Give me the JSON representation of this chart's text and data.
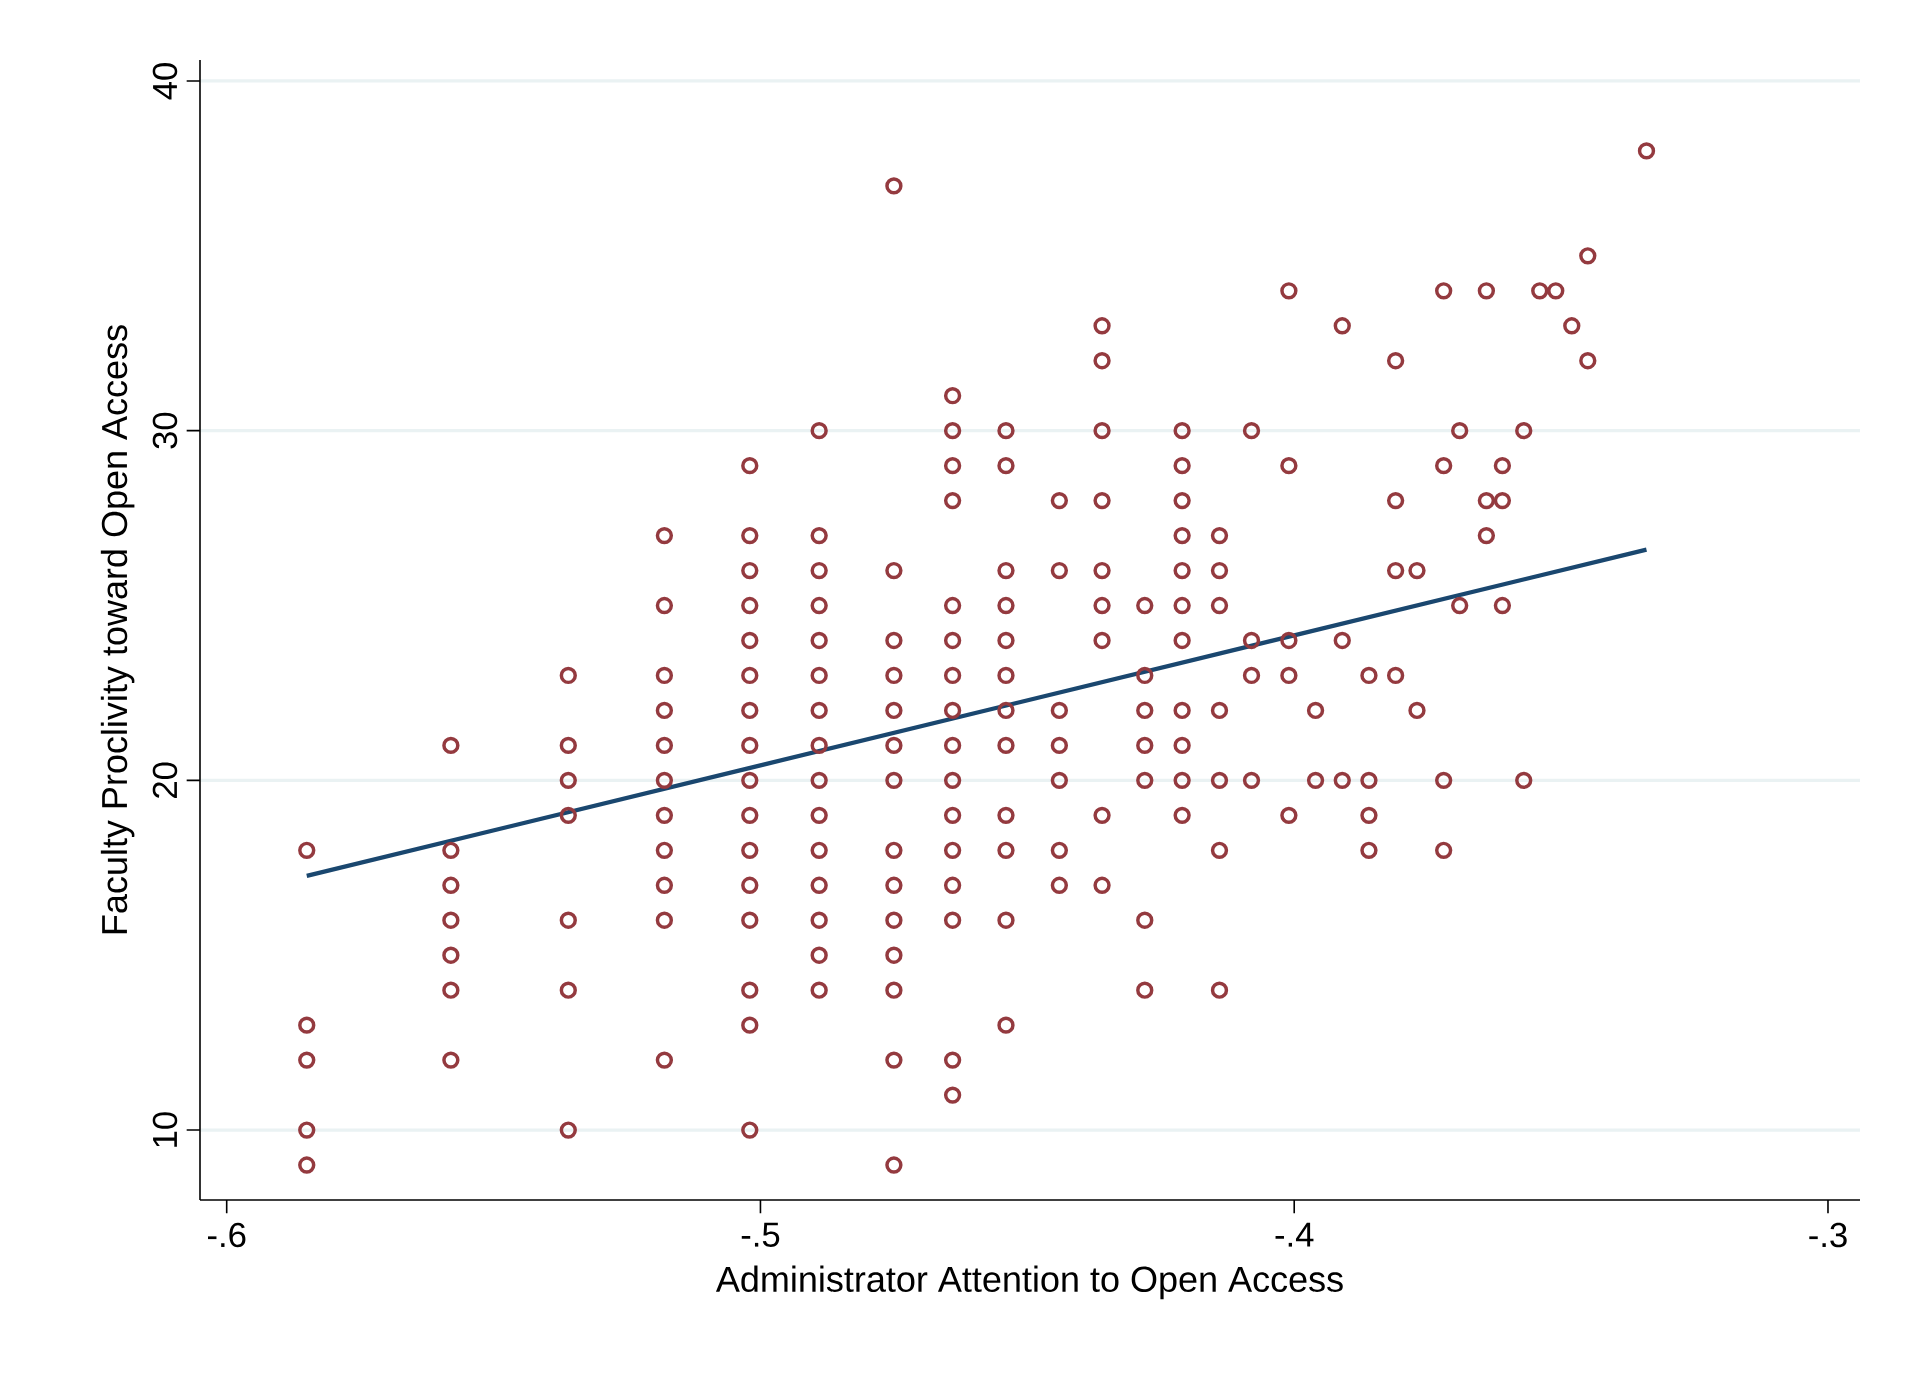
{
  "chart_data": {
    "type": "scatter",
    "xlabel": "Administrator Attention to Open Access",
    "ylabel": "Faculty Proclivity toward Open Access",
    "xlim": [
      -0.605,
      -0.294
    ],
    "ylim": [
      8,
      40.6
    ],
    "xticks": [
      {
        "value": -0.6,
        "label": "-.6"
      },
      {
        "value": -0.5,
        "label": "-.5"
      },
      {
        "value": -0.4,
        "label": "-.4"
      },
      {
        "value": -0.3,
        "label": "-.3"
      }
    ],
    "yticks": [
      10,
      20,
      30,
      40
    ],
    "grid": "y",
    "series": [
      {
        "color": "#943a3f",
        "marker": "circle",
        "x": [
          -0.585,
          -0.585,
          -0.585,
          -0.585,
          -0.585,
          -0.558,
          -0.558,
          -0.558,
          -0.558,
          -0.558,
          -0.558,
          -0.558,
          -0.536,
          -0.536,
          -0.536,
          -0.536,
          -0.536,
          -0.536,
          -0.536,
          -0.518,
          -0.518,
          -0.518,
          -0.518,
          -0.518,
          -0.518,
          -0.518,
          -0.518,
          -0.518,
          -0.518,
          -0.518,
          -0.502,
          -0.502,
          -0.502,
          -0.502,
          -0.502,
          -0.502,
          -0.502,
          -0.502,
          -0.502,
          -0.502,
          -0.502,
          -0.502,
          -0.502,
          -0.502,
          -0.502,
          -0.502,
          -0.489,
          -0.489,
          -0.489,
          -0.489,
          -0.489,
          -0.489,
          -0.489,
          -0.489,
          -0.489,
          -0.489,
          -0.489,
          -0.489,
          -0.489,
          -0.489,
          -0.489,
          -0.475,
          -0.475,
          -0.475,
          -0.475,
          -0.475,
          -0.475,
          -0.475,
          -0.475,
          -0.475,
          -0.475,
          -0.475,
          -0.475,
          -0.475,
          -0.475,
          -0.464,
          -0.464,
          -0.464,
          -0.464,
          -0.464,
          -0.464,
          -0.464,
          -0.464,
          -0.464,
          -0.464,
          -0.464,
          -0.464,
          -0.464,
          -0.464,
          -0.464,
          -0.464,
          -0.454,
          -0.454,
          -0.454,
          -0.454,
          -0.454,
          -0.454,
          -0.454,
          -0.454,
          -0.454,
          -0.454,
          -0.454,
          -0.454,
          -0.444,
          -0.444,
          -0.444,
          -0.444,
          -0.444,
          -0.444,
          -0.444,
          -0.436,
          -0.436,
          -0.436,
          -0.436,
          -0.436,
          -0.436,
          -0.436,
          -0.436,
          -0.436,
          -0.428,
          -0.428,
          -0.428,
          -0.428,
          -0.428,
          -0.428,
          -0.428,
          -0.421,
          -0.421,
          -0.421,
          -0.421,
          -0.421,
          -0.421,
          -0.421,
          -0.421,
          -0.421,
          -0.421,
          -0.421,
          -0.414,
          -0.414,
          -0.414,
          -0.414,
          -0.414,
          -0.414,
          -0.414,
          -0.408,
          -0.408,
          -0.408,
          -0.408,
          -0.401,
          -0.401,
          -0.401,
          -0.401,
          -0.401,
          -0.396,
          -0.396,
          -0.391,
          -0.391,
          -0.391,
          -0.386,
          -0.386,
          -0.386,
          -0.386,
          -0.381,
          -0.381,
          -0.381,
          -0.381,
          -0.377,
          -0.377,
          -0.372,
          -0.372,
          -0.372,
          -0.372,
          -0.369,
          -0.369,
          -0.364,
          -0.364,
          -0.364,
          -0.361,
          -0.361,
          -0.361,
          -0.357,
          -0.357,
          -0.354,
          -0.351,
          -0.348,
          -0.345,
          -0.345,
          -0.334
        ],
        "values": [
          18,
          13,
          12,
          10,
          9,
          21,
          18,
          17,
          16,
          15,
          14,
          12,
          23,
          21,
          20,
          19,
          16,
          14,
          10,
          27,
          25,
          23,
          22,
          21,
          20,
          19,
          18,
          17,
          16,
          12,
          29,
          27,
          26,
          25,
          24,
          23,
          22,
          21,
          20,
          19,
          18,
          17,
          16,
          14,
          13,
          10,
          30,
          27,
          26,
          25,
          24,
          23,
          22,
          21,
          20,
          19,
          18,
          17,
          16,
          15,
          14,
          37,
          26,
          24,
          23,
          22,
          21,
          20,
          18,
          17,
          16,
          15,
          14,
          12,
          9,
          31,
          30,
          29,
          28,
          25,
          24,
          23,
          22,
          21,
          20,
          19,
          18,
          17,
          16,
          12,
          11,
          30,
          29,
          26,
          25,
          24,
          23,
          22,
          21,
          19,
          18,
          16,
          13,
          28,
          26,
          22,
          21,
          20,
          18,
          17,
          33,
          32,
          30,
          28,
          26,
          25,
          24,
          19,
          17,
          25,
          23,
          22,
          21,
          20,
          16,
          14,
          30,
          29,
          28,
          27,
          26,
          25,
          24,
          22,
          21,
          20,
          19,
          27,
          26,
          25,
          22,
          20,
          18,
          14,
          30,
          24,
          23,
          20,
          34,
          29,
          24,
          23,
          19,
          22,
          20,
          33,
          24,
          20,
          23,
          20,
          19,
          18,
          32,
          28,
          26,
          23,
          26,
          22,
          34,
          29,
          20,
          18,
          30,
          25,
          34,
          28,
          27,
          29,
          28,
          25,
          30,
          20,
          34,
          34,
          33,
          35,
          32,
          38
        ]
      },
      {
        "type": "line",
        "color": "#1a476f",
        "x": [
          -0.585,
          -0.334
        ],
        "values": [
          17.27,
          26.6
        ]
      }
    ]
  }
}
